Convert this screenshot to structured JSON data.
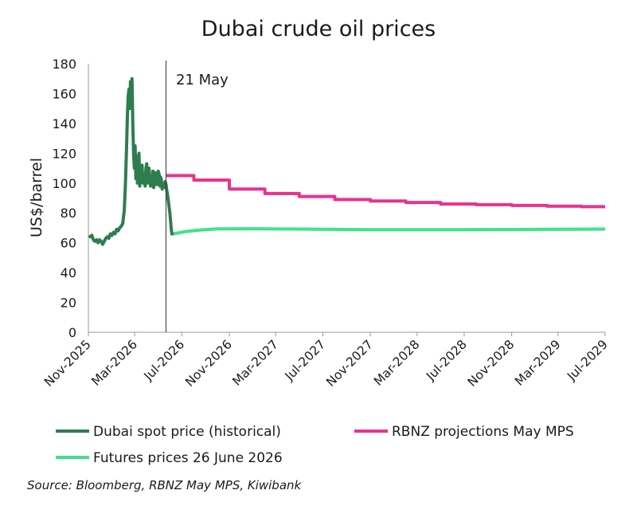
{
  "chart_data": {
    "type": "line",
    "title": "Dubai crude oil prices",
    "ylabel": "US$/barrel",
    "xlabel": "",
    "ylim": [
      0,
      180
    ],
    "yticks": [
      0,
      20,
      40,
      60,
      80,
      100,
      120,
      140,
      160,
      180
    ],
    "xlim": [
      "2025-11-01",
      "2029-07-01"
    ],
    "xticks": [
      {
        "date": "2025-11-01",
        "label": "Nov-2025"
      },
      {
        "date": "2026-03-01",
        "label": "Mar-2026"
      },
      {
        "date": "2026-07-01",
        "label": "Jul-2026"
      },
      {
        "date": "2026-11-01",
        "label": "Nov-2026"
      },
      {
        "date": "2027-03-01",
        "label": "Mar-2027"
      },
      {
        "date": "2027-07-01",
        "label": "Jul-2027"
      },
      {
        "date": "2027-11-01",
        "label": "Nov-2027"
      },
      {
        "date": "2028-03-01",
        "label": "Mar-2028"
      },
      {
        "date": "2028-07-01",
        "label": "Jul-2028"
      },
      {
        "date": "2028-11-01",
        "label": "Nov-2028"
      },
      {
        "date": "2029-03-01",
        "label": "Mar-2029"
      },
      {
        "date": "2029-07-01",
        "label": "Jul-2029"
      }
    ],
    "grid": false,
    "legend_position": "bottom",
    "annotations": [
      {
        "type": "vline",
        "date": "2026-05-21",
        "label": "21 May"
      }
    ],
    "series": [
      {
        "name": "Dubai spot price (historical)",
        "color": "#2e7d4f",
        "points": [
          [
            "2025-11-03",
            65
          ],
          [
            "2025-11-06",
            64
          ],
          [
            "2025-11-10",
            65
          ],
          [
            "2025-11-14",
            62
          ],
          [
            "2025-11-18",
            61
          ],
          [
            "2025-11-22",
            62
          ],
          [
            "2025-11-26",
            60
          ],
          [
            "2025-11-30",
            62
          ],
          [
            "2025-12-04",
            61
          ],
          [
            "2025-12-08",
            59
          ],
          [
            "2025-12-12",
            61
          ],
          [
            "2025-12-16",
            63
          ],
          [
            "2025-12-20",
            64
          ],
          [
            "2025-12-24",
            63
          ],
          [
            "2025-12-28",
            66
          ],
          [
            "2026-01-01",
            65
          ],
          [
            "2026-01-05",
            67
          ],
          [
            "2026-01-09",
            66
          ],
          [
            "2026-01-13",
            69
          ],
          [
            "2026-01-17",
            68
          ],
          [
            "2026-01-21",
            70
          ],
          [
            "2026-01-25",
            71
          ],
          [
            "2026-01-29",
            73
          ],
          [
            "2026-02-02",
            82
          ],
          [
            "2026-02-05",
            100
          ],
          [
            "2026-02-08",
            125
          ],
          [
            "2026-02-10",
            145
          ],
          [
            "2026-02-12",
            158
          ],
          [
            "2026-02-14",
            163
          ],
          [
            "2026-02-16",
            150
          ],
          [
            "2026-02-18",
            168
          ],
          [
            "2026-02-20",
            155
          ],
          [
            "2026-02-22",
            170
          ],
          [
            "2026-02-24",
            140
          ],
          [
            "2026-02-26",
            120
          ],
          [
            "2026-02-28",
            110
          ],
          [
            "2026-03-02",
            125
          ],
          [
            "2026-03-04",
            103
          ],
          [
            "2026-03-06",
            118
          ],
          [
            "2026-03-08",
            100
          ],
          [
            "2026-03-10",
            108
          ],
          [
            "2026-03-12",
            120
          ],
          [
            "2026-03-14",
            98
          ],
          [
            "2026-03-16",
            110
          ],
          [
            "2026-03-18",
            102
          ],
          [
            "2026-03-20",
            112
          ],
          [
            "2026-03-22",
            100
          ],
          [
            "2026-03-24",
            106
          ],
          [
            "2026-03-26",
            104
          ],
          [
            "2026-03-28",
            98
          ],
          [
            "2026-03-30",
            110
          ],
          [
            "2026-04-01",
            113
          ],
          [
            "2026-04-03",
            100
          ],
          [
            "2026-04-05",
            104
          ],
          [
            "2026-04-07",
            110
          ],
          [
            "2026-04-09",
            102
          ],
          [
            "2026-04-11",
            98
          ],
          [
            "2026-04-13",
            104
          ],
          [
            "2026-04-15",
            100
          ],
          [
            "2026-04-17",
            108
          ],
          [
            "2026-04-19",
            97
          ],
          [
            "2026-04-21",
            103
          ],
          [
            "2026-04-23",
            107
          ],
          [
            "2026-04-25",
            101
          ],
          [
            "2026-04-27",
            99
          ],
          [
            "2026-04-29",
            104
          ],
          [
            "2026-05-01",
            108
          ],
          [
            "2026-05-03",
            106
          ],
          [
            "2026-05-05",
            98
          ],
          [
            "2026-05-07",
            104
          ],
          [
            "2026-05-09",
            102
          ],
          [
            "2026-05-11",
            96
          ],
          [
            "2026-05-13",
            100
          ],
          [
            "2026-05-15",
            97
          ],
          [
            "2026-05-17",
            99
          ],
          [
            "2026-05-19",
            101
          ],
          [
            "2026-05-21",
            99
          ],
          [
            "2026-05-23",
            95
          ],
          [
            "2026-05-25",
            92
          ],
          [
            "2026-05-27",
            88
          ],
          [
            "2026-05-29",
            84
          ],
          [
            "2026-05-31",
            80
          ],
          [
            "2026-06-02",
            74
          ],
          [
            "2026-06-04",
            68
          ],
          [
            "2026-06-06",
            65
          ]
        ]
      },
      {
        "name": "RBNZ projections May MPS",
        "color": "#e8338f",
        "step": true,
        "points": [
          [
            "2026-05-21",
            105
          ],
          [
            "2026-08-01",
            102
          ],
          [
            "2026-11-01",
            96
          ],
          [
            "2027-02-01",
            93
          ],
          [
            "2027-05-01",
            91
          ],
          [
            "2027-08-01",
            89
          ],
          [
            "2027-11-01",
            88
          ],
          [
            "2028-02-01",
            87
          ],
          [
            "2028-05-01",
            86
          ],
          [
            "2028-08-01",
            85.5
          ],
          [
            "2028-11-01",
            85
          ],
          [
            "2029-02-01",
            84.5
          ],
          [
            "2029-05-01",
            84.2
          ],
          [
            "2029-07-01",
            84.2
          ]
        ]
      },
      {
        "name": "Futures prices 26 June 2026",
        "color": "#3ee38c",
        "points": [
          [
            "2026-06-06",
            66
          ],
          [
            "2026-06-20",
            66.5
          ],
          [
            "2026-07-10",
            67.5
          ],
          [
            "2026-08-15",
            68.5
          ],
          [
            "2026-10-01",
            69.3
          ],
          [
            "2027-01-01",
            69.4
          ],
          [
            "2027-06-01",
            69.1
          ],
          [
            "2027-11-01",
            68.8
          ],
          [
            "2028-06-01",
            68.8
          ],
          [
            "2029-01-01",
            69.0
          ],
          [
            "2029-07-01",
            69.2
          ]
        ]
      }
    ]
  },
  "source_note": "Source: Bloomberg, RBNZ May MPS, Kiwibank"
}
